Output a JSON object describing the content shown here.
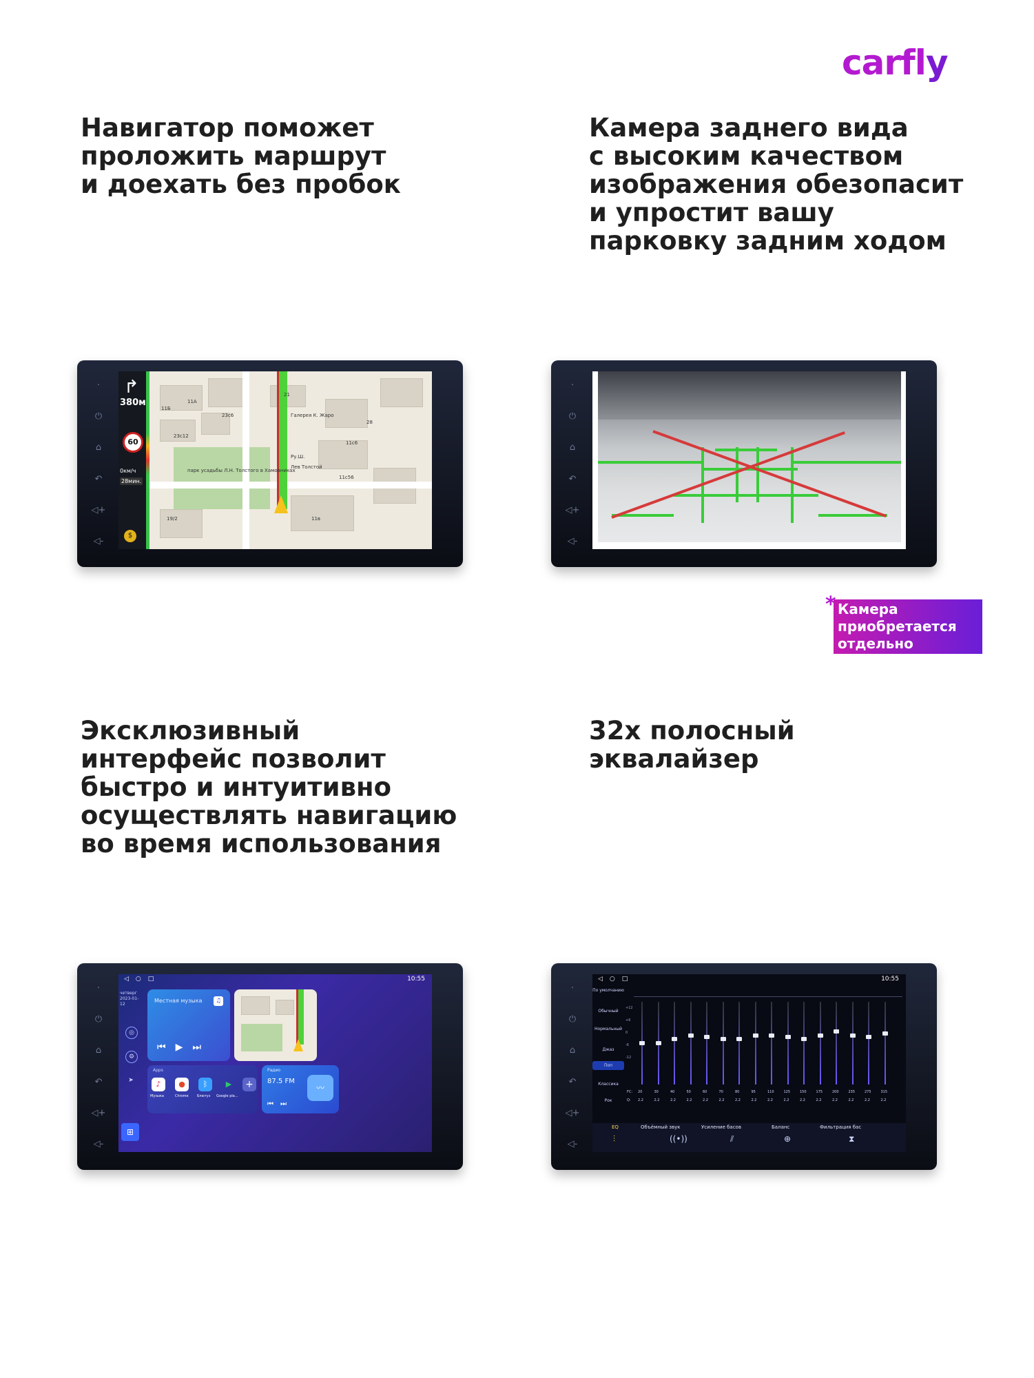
{
  "brand": {
    "logo_main": "carfl",
    "logo_tail": "y"
  },
  "sections": {
    "navigator": {
      "lines": [
        "Навигатор поможет",
        "проложить маршрут",
        "и доехать без пробок"
      ]
    },
    "camera": {
      "lines": [
        "Камера заднего вида",
        "с высоким качеством",
        "изображения обезопасит",
        "и упростит вашу",
        "парковку задним ходом"
      ]
    },
    "interface": {
      "lines": [
        "Эксклюзивный",
        "интерфейс позволит",
        "быстро и интуитивно",
        "осуществлять навигацию",
        "во время использования"
      ]
    },
    "equalizer": {
      "lines": [
        "32х полосный",
        "эквалайзер"
      ]
    }
  },
  "camera_note": {
    "star": "*",
    "lines": [
      "Камера",
      "приобретается",
      "отдельно"
    ]
  },
  "nav_screen": {
    "distance": "380м",
    "speed_limit": "60",
    "speed": "0км/ч",
    "eta": "28мин.",
    "map_labels": [
      "11Б",
      "23с12",
      "парк усадьбы Л.Н. Толстого в Хамовниках",
      "Галерея К. Жаро",
      "Ру.Ш.",
      "Лев Толстой",
      "11с56",
      "11в",
      "11с6",
      "23с6",
      "28",
      "19/2",
      "21",
      "11А"
    ]
  },
  "launcher_screen": {
    "status_time": "10:55",
    "date_line1": "четверг",
    "date_line2": "2023-01-12",
    "music_title": "Местная музыка",
    "apps_header": "Apps",
    "apps": [
      "Музыка",
      "Chrome",
      "Блютуз",
      "Google pla..."
    ],
    "radio_header": "Радио",
    "radio_freq": "87.5",
    "radio_band": "FM"
  },
  "eq_screen": {
    "status_time": "10:55",
    "presets": [
      "По умолчанию",
      "Обычный",
      "Нормальный",
      "Джаз",
      "Поп",
      "Классика",
      "Рок"
    ],
    "selected_preset": "Поп",
    "scale": [
      "+12",
      "+6",
      "0",
      "-6",
      "-12"
    ],
    "fc_label": "FC:",
    "q_label": "Q:",
    "frequencies": [
      "20",
      "30",
      "40",
      "50",
      "60",
      "70",
      "80",
      "95",
      "110",
      "125",
      "150",
      "175",
      "200",
      "235",
      "275",
      "315"
    ],
    "q_values": [
      "2.2",
      "2.2",
      "2.2",
      "2.2",
      "2.2",
      "2.2",
      "2.2",
      "2.2",
      "2.2",
      "2.2",
      "2.2",
      "2.2",
      "2.2",
      "2.2",
      "2.2",
      "2.2"
    ],
    "slider_levels": [
      0.5,
      0.5,
      0.55,
      0.6,
      0.58,
      0.55,
      0.55,
      0.6,
      0.6,
      0.58,
      0.55,
      0.6,
      0.65,
      0.6,
      0.58,
      0.62
    ],
    "tabs": [
      "EQ",
      "Объёмный звук",
      "Усиление басов",
      "Баланс",
      "Фильтрация бас"
    ],
    "selected_tab": "EQ"
  }
}
